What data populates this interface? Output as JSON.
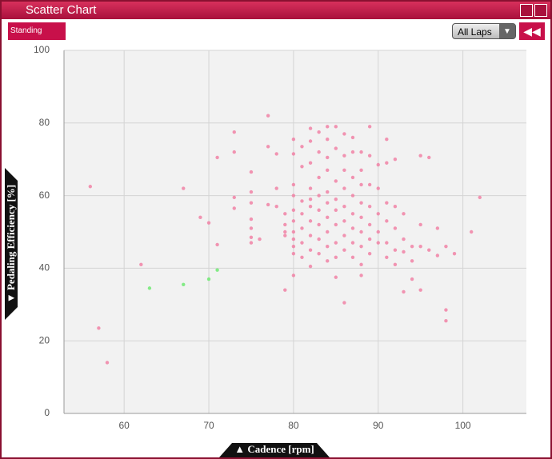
{
  "window": {
    "title": "Scatter Chart",
    "mode_badge": "Standing",
    "lap_select": "All Laps"
  },
  "chart_data": {
    "type": "scatter",
    "xlabel": "▲ Cadence [rpm]",
    "ylabel": "▼ Pedaling Efficiency [%]",
    "xlim": [
      52.9,
      107.5
    ],
    "ylim": [
      0,
      100
    ],
    "xticks": [
      60,
      70,
      80,
      90,
      100
    ],
    "yticks": [
      0,
      20,
      40,
      60,
      80,
      100
    ],
    "grid": true,
    "series": [
      {
        "color": "#f07aa0",
        "x": [
          56,
          57,
          58,
          62,
          67,
          69,
          70,
          71,
          71,
          73,
          73,
          73,
          73,
          75,
          75,
          75,
          75,
          75,
          75,
          75,
          76,
          77,
          77,
          77,
          78,
          78,
          78,
          79,
          79,
          79,
          79,
          79,
          80,
          80,
          80,
          80,
          80,
          80,
          80,
          80,
          80,
          80,
          80,
          81,
          81,
          81,
          81,
          81,
          81,
          81,
          82,
          82,
          82,
          82,
          82,
          82,
          82,
          82,
          82,
          82,
          83,
          83,
          83,
          83,
          83,
          83,
          83,
          83,
          84,
          84,
          84,
          84,
          84,
          84,
          84,
          84,
          84,
          84,
          85,
          85,
          85,
          85,
          85,
          85,
          85,
          85,
          85,
          86,
          86,
          86,
          86,
          86,
          86,
          86,
          86,
          86,
          87,
          87,
          87,
          87,
          87,
          87,
          87,
          87,
          88,
          88,
          88,
          88,
          88,
          88,
          88,
          88,
          88,
          89,
          89,
          89,
          89,
          89,
          89,
          89,
          90,
          90,
          90,
          90,
          90,
          91,
          91,
          91,
          91,
          91,
          91,
          92,
          92,
          92,
          92,
          92,
          93,
          93,
          93,
          93,
          94,
          94,
          94,
          95,
          95,
          95,
          95,
          96,
          96,
          97,
          97,
          98,
          98,
          98,
          99,
          101,
          102
        ],
        "values": [
          62.5,
          23.5,
          14,
          41,
          62,
          54,
          52.5,
          70.5,
          46.5,
          77.5,
          72,
          59.5,
          56.5,
          66.5,
          61,
          58,
          53.5,
          51,
          48.5,
          47,
          48,
          82,
          73.5,
          57.5,
          71.5,
          62,
          57,
          55,
          52,
          50,
          49,
          34,
          75.5,
          71.5,
          63,
          60,
          56,
          53,
          50,
          48,
          46,
          44,
          38,
          73.5,
          68,
          58.5,
          55,
          51,
          47,
          43,
          78.5,
          75,
          69,
          62,
          59,
          57,
          53,
          49,
          45,
          40.5,
          77.5,
          72,
          65,
          60,
          56,
          52,
          48,
          44,
          79,
          75.5,
          70.5,
          67,
          61,
          58,
          54,
          50,
          46,
          42,
          79,
          73,
          64,
          59,
          56,
          52,
          47,
          43,
          37.5,
          77,
          71,
          67,
          62,
          57,
          53,
          49,
          45,
          30.5,
          76,
          72,
          65,
          60,
          55,
          51,
          47,
          43,
          72,
          67,
          63,
          58,
          54,
          50,
          46,
          41,
          38,
          79,
          71,
          63,
          57,
          52,
          48,
          44,
          68.5,
          62,
          55,
          50,
          47,
          75.5,
          69,
          58,
          53,
          47,
          43,
          70,
          57,
          51,
          45,
          41,
          55,
          48,
          44.5,
          33.5,
          46,
          42,
          37,
          71,
          52,
          46,
          34,
          70.5,
          45,
          51,
          43.5,
          46,
          28.5,
          25.5,
          44,
          50,
          59.5
        ]
      },
      {
        "color": "#66e86a",
        "x": [
          63,
          67,
          70,
          71
        ],
        "values": [
          34.5,
          35.5,
          37,
          39.5
        ]
      }
    ]
  }
}
